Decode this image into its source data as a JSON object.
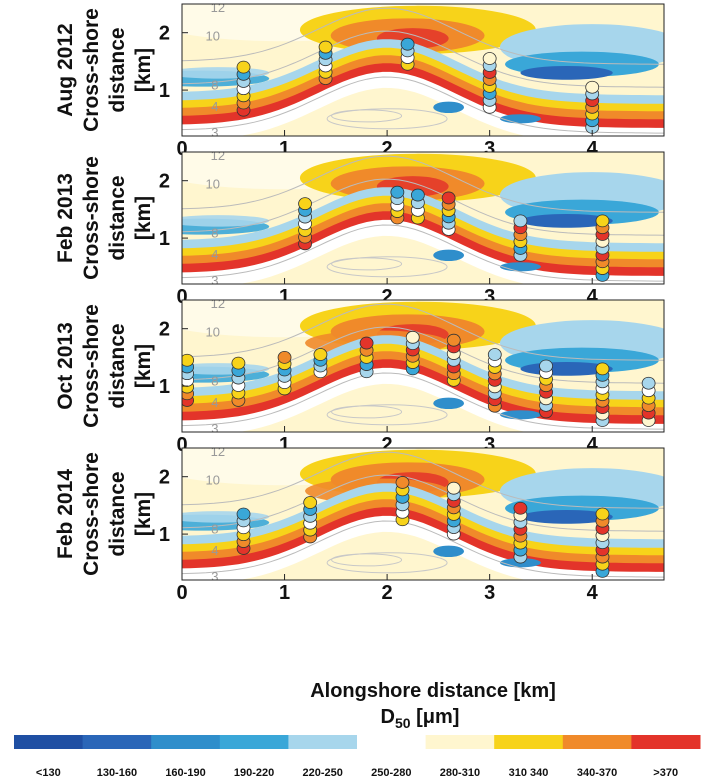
{
  "chart_data": {
    "type": "heatmap",
    "xlabel": "Alongshore distance [km]",
    "colorbar_label": "D50 [μm]",
    "colorbar_label_main": "D",
    "colorbar_label_sub": "50",
    "colorbar_label_unit": " [μm]",
    "xlim": [
      0,
      4.7
    ],
    "ylim": [
      0.2,
      2.5
    ],
    "x_ticks": [
      "0",
      "1",
      "2",
      "3",
      "4"
    ],
    "y_ticks": [
      "1",
      "2"
    ],
    "contour_labels": [
      "12",
      "10",
      "8",
      "4",
      "3"
    ],
    "colorbar": [
      {
        "label": "<130",
        "color": "#1f4fa3"
      },
      {
        "label": "130-160",
        "color": "#2a66b8"
      },
      {
        "label": "160-190",
        "color": "#2f8ecb"
      },
      {
        "label": "190-220",
        "color": "#3aa7d8"
      },
      {
        "label": "220-250",
        "color": "#a7d6ec"
      },
      {
        "label": "250-280",
        "color": "#ffffff"
      },
      {
        "label": "280-310",
        "color": "#fff6cf"
      },
      {
        "label": "310 340",
        "color": "#f7d31a"
      },
      {
        "label": "340-370",
        "color": "#f08a2a"
      },
      {
        "label": ">370",
        "color": "#e3342a"
      }
    ],
    "panels": [
      {
        "title": "Aug 2012",
        "ylabel": [
          "Cross-shore",
          "distance",
          "[km]"
        ],
        "transects": [
          {
            "x": 0.6,
            "y_from": 0.65,
            "y_to": 1.4
          },
          {
            "x": 1.4,
            "y_from": 1.2,
            "y_to": 1.75
          },
          {
            "x": 2.2,
            "y_from": 1.45,
            "y_to": 1.8
          },
          {
            "x": 3.0,
            "y_from": 0.7,
            "y_to": 1.55
          },
          {
            "x": 4.0,
            "y_from": 0.35,
            "y_to": 1.05
          }
        ]
      },
      {
        "title": "Feb 2013",
        "ylabel": [
          "Cross-shore",
          "distance",
          "[km]"
        ],
        "transects": [
          {
            "x": 1.2,
            "y_from": 0.9,
            "y_to": 1.6
          },
          {
            "x": 2.1,
            "y_from": 1.35,
            "y_to": 1.8
          },
          {
            "x": 2.3,
            "y_from": 1.35,
            "y_to": 1.75
          },
          {
            "x": 2.6,
            "y_from": 1.15,
            "y_to": 1.7
          },
          {
            "x": 3.3,
            "y_from": 0.7,
            "y_to": 1.3
          },
          {
            "x": 4.1,
            "y_from": 0.35,
            "y_to": 1.3
          }
        ]
      },
      {
        "title": "Oct 2013",
        "ylabel": [
          "Cross-shore",
          "distance",
          "[km]"
        ],
        "transects": [
          {
            "x": 0.05,
            "y_from": 0.75,
            "y_to": 1.45
          },
          {
            "x": 0.55,
            "y_from": 0.75,
            "y_to": 1.4
          },
          {
            "x": 1.0,
            "y_from": 0.95,
            "y_to": 1.5
          },
          {
            "x": 1.35,
            "y_from": 1.25,
            "y_to": 1.55
          },
          {
            "x": 1.8,
            "y_from": 1.25,
            "y_to": 1.75
          },
          {
            "x": 2.25,
            "y_from": 1.3,
            "y_to": 1.85
          },
          {
            "x": 2.65,
            "y_from": 1.1,
            "y_to": 1.8
          },
          {
            "x": 3.05,
            "y_from": 0.65,
            "y_to": 1.55
          },
          {
            "x": 3.55,
            "y_from": 0.55,
            "y_to": 1.35
          },
          {
            "x": 4.1,
            "y_from": 0.4,
            "y_to": 1.3
          },
          {
            "x": 4.55,
            "y_from": 0.4,
            "y_to": 1.05
          }
        ]
      },
      {
        "title": "Feb 2014",
        "ylabel": [
          "Cross-shore",
          "distance",
          "[km]"
        ],
        "transects": [
          {
            "x": 0.6,
            "y_from": 0.75,
            "y_to": 1.35
          },
          {
            "x": 1.25,
            "y_from": 0.95,
            "y_to": 1.55
          },
          {
            "x": 2.15,
            "y_from": 1.25,
            "y_to": 1.9
          },
          {
            "x": 2.65,
            "y_from": 1.0,
            "y_to": 1.8
          },
          {
            "x": 3.3,
            "y_from": 0.6,
            "y_to": 1.45
          },
          {
            "x": 4.1,
            "y_from": 0.35,
            "y_to": 1.35
          }
        ]
      }
    ]
  }
}
